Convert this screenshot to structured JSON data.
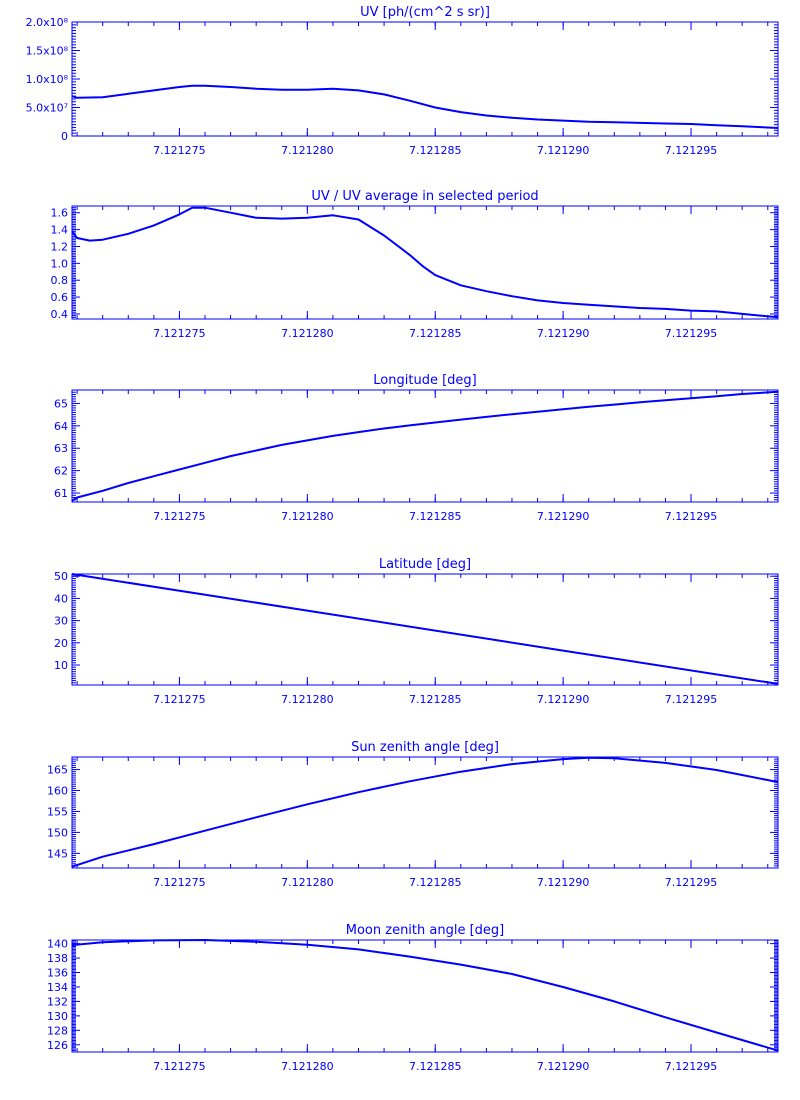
{
  "colors": {
    "line": "#0000ff",
    "background": "#ffffff"
  },
  "chart_data": [
    {
      "type": "line",
      "title": "UV [ph/(cm^2 s sr)]",
      "ylim": [
        0,
        200000000
      ],
      "yticks": [
        0,
        50000000,
        100000000,
        150000000,
        200000000
      ],
      "ytick_labels": [
        "0",
        "5.0x10⁷",
        "1.0x10⁸",
        "1.5x10⁸",
        "2.0x10⁸"
      ],
      "xlim": [
        7.1212708,
        7.1212984
      ],
      "xticks": [
        7.121275,
        7.12128,
        7.121285,
        7.12129,
        7.121295
      ],
      "xtick_labels": [
        "7.121275",
        "7.121280",
        "7.121285",
        "7.121290",
        "7.121295"
      ],
      "x": [
        7.1212708,
        7.121271,
        7.121272,
        7.121273,
        7.121274,
        7.121275,
        7.1212755,
        7.121276,
        7.121277,
        7.121278,
        7.121279,
        7.12128,
        7.121281,
        7.121282,
        7.121283,
        7.121284,
        7.121285,
        7.121286,
        7.121287,
        7.121288,
        7.121289,
        7.12129,
        7.121291,
        7.121292,
        7.121293,
        7.121294,
        7.121295,
        7.121296,
        7.121297,
        7.1212984
      ],
      "y": [
        70000000,
        67000000,
        68000000,
        74000000,
        80000000,
        86000000,
        88000000,
        88000000,
        86000000,
        83000000,
        81000000,
        81000000,
        83000000,
        80000000,
        73000000,
        62000000,
        50000000,
        42000000,
        36000000,
        32000000,
        29000000,
        27000000,
        25000000,
        24000000,
        23000000,
        22000000,
        21000000,
        19000000,
        17000000,
        14000000
      ]
    },
    {
      "type": "line",
      "title": "UV / UV average in selected period",
      "ylim": [
        0.34,
        1.68
      ],
      "yticks": [
        0.4,
        0.6,
        0.8,
        1.0,
        1.2,
        1.4,
        1.6
      ],
      "ytick_labels": [
        "0.4",
        "0.6",
        "0.8",
        "1.0",
        "1.2",
        "1.4",
        "1.6"
      ],
      "xlim": [
        7.1212708,
        7.1212984
      ],
      "xticks": [
        7.121275,
        7.12128,
        7.121285,
        7.12129,
        7.121295
      ],
      "xtick_labels": [
        "7.121275",
        "7.121280",
        "7.121285",
        "7.121290",
        "7.121295"
      ],
      "x": [
        7.1212708,
        7.121271,
        7.1212715,
        7.121272,
        7.121273,
        7.121274,
        7.121275,
        7.1212755,
        7.121276,
        7.121277,
        7.121278,
        7.121279,
        7.12128,
        7.121281,
        7.121282,
        7.121283,
        7.121284,
        7.1212845,
        7.121285,
        7.121286,
        7.121287,
        7.121288,
        7.121289,
        7.12129,
        7.121291,
        7.121292,
        7.121293,
        7.121294,
        7.121295,
        7.121296,
        7.121297,
        7.1212984
      ],
      "y": [
        1.38,
        1.3,
        1.27,
        1.28,
        1.35,
        1.45,
        1.58,
        1.66,
        1.66,
        1.6,
        1.54,
        1.53,
        1.54,
        1.57,
        1.52,
        1.33,
        1.1,
        0.97,
        0.86,
        0.74,
        0.67,
        0.61,
        0.56,
        0.53,
        0.51,
        0.49,
        0.47,
        0.46,
        0.44,
        0.43,
        0.4,
        0.36
      ]
    },
    {
      "type": "line",
      "title": "Longitude [deg]",
      "ylim": [
        60.6,
        65.6
      ],
      "yticks": [
        61,
        62,
        63,
        64,
        65
      ],
      "ytick_labels": [
        "61",
        "62",
        "63",
        "64",
        "65"
      ],
      "xlim": [
        7.1212708,
        7.1212984
      ],
      "xticks": [
        7.121275,
        7.12128,
        7.121285,
        7.12129,
        7.121295
      ],
      "xtick_labels": [
        "7.121275",
        "7.121280",
        "7.121285",
        "7.121290",
        "7.121295"
      ],
      "x": [
        7.1212708,
        7.121271,
        7.121272,
        7.121273,
        7.121274,
        7.121275,
        7.121276,
        7.121277,
        7.121278,
        7.121279,
        7.12128,
        7.121281,
        7.121282,
        7.121283,
        7.121284,
        7.121285,
        7.121286,
        7.121287,
        7.121288,
        7.121289,
        7.12129,
        7.121291,
        7.121292,
        7.121293,
        7.121294,
        7.121295,
        7.121296,
        7.121297,
        7.1212984
      ],
      "y": [
        60.65,
        60.8,
        61.1,
        61.45,
        61.75,
        62.05,
        62.35,
        62.65,
        62.9,
        63.15,
        63.35,
        63.55,
        63.72,
        63.88,
        64.02,
        64.15,
        64.28,
        64.4,
        64.52,
        64.63,
        64.74,
        64.85,
        64.95,
        65.05,
        65.14,
        65.23,
        65.32,
        65.42,
        65.52
      ]
    },
    {
      "type": "line",
      "title": "Latitude [deg]",
      "ylim": [
        1,
        51
      ],
      "yticks": [
        10,
        20,
        30,
        40,
        50
      ],
      "ytick_labels": [
        "10",
        "20",
        "30",
        "40",
        "50"
      ],
      "xlim": [
        7.1212708,
        7.1212984
      ],
      "xticks": [
        7.121275,
        7.12128,
        7.121285,
        7.12129,
        7.121295
      ],
      "xtick_labels": [
        "7.121275",
        "7.121280",
        "7.121285",
        "7.121290",
        "7.121295"
      ],
      "x": [
        7.1212708,
        7.12128,
        7.12129,
        7.1212984
      ],
      "y": [
        51,
        34.5,
        16.5,
        1.5
      ]
    },
    {
      "type": "line",
      "title": "Sun zenith angle [deg]",
      "ylim": [
        141.5,
        168
      ],
      "yticks": [
        145,
        150,
        155,
        160,
        165
      ],
      "ytick_labels": [
        "145",
        "150",
        "155",
        "160",
        "165"
      ],
      "xlim": [
        7.1212708,
        7.1212984
      ],
      "xticks": [
        7.121275,
        7.12128,
        7.121285,
        7.12129,
        7.121295
      ],
      "xtick_labels": [
        "7.121275",
        "7.121280",
        "7.121285",
        "7.121290",
        "7.121295"
      ],
      "x": [
        7.1212708,
        7.121272,
        7.121274,
        7.121276,
        7.121278,
        7.12128,
        7.121282,
        7.121284,
        7.121286,
        7.121288,
        7.12129,
        7.121291,
        7.121292,
        7.121294,
        7.121296,
        7.1212984
      ],
      "y": [
        141.8,
        144.2,
        147.2,
        150.4,
        153.6,
        156.7,
        159.6,
        162.2,
        164.5,
        166.3,
        167.5,
        167.8,
        167.7,
        166.6,
        164.9,
        162.0
      ]
    },
    {
      "type": "line",
      "title": "Moon zenith angle [deg]",
      "ylim": [
        125,
        140.5
      ],
      "yticks": [
        126,
        128,
        130,
        132,
        134,
        136,
        138,
        140
      ],
      "ytick_labels": [
        "126",
        "128",
        "130",
        "132",
        "134",
        "136",
        "138",
        "140"
      ],
      "xlim": [
        7.1212708,
        7.1212984
      ],
      "xticks": [
        7.121275,
        7.12128,
        7.121285,
        7.12129,
        7.121295
      ],
      "xtick_labels": [
        "7.121275",
        "7.121280",
        "7.121285",
        "7.121290",
        "7.121295"
      ],
      "x": [
        7.1212708,
        7.121272,
        7.121274,
        7.121276,
        7.121278,
        7.12128,
        7.121282,
        7.121284,
        7.121286,
        7.121288,
        7.12129,
        7.121292,
        7.121294,
        7.121296,
        7.1212984
      ],
      "y": [
        139.8,
        140.2,
        140.45,
        140.5,
        140.25,
        139.85,
        139.2,
        138.2,
        137.1,
        135.8,
        134.0,
        132.0,
        129.8,
        127.7,
        125.2
      ]
    }
  ]
}
